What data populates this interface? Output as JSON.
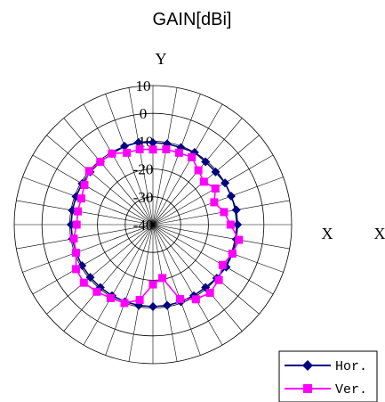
{
  "chart_data": {
    "type": "radar",
    "title": "GAIN[dBi]",
    "axis_labels": {
      "top": "Y",
      "right_1": "X",
      "right_2": "X"
    },
    "radial_ticks": [
      "10",
      "0",
      "-10",
      "-20",
      "-30",
      "-40"
    ],
    "radial_range": [
      -40,
      10
    ],
    "radial_step": 10,
    "spokes": 36,
    "grid": true,
    "legend_position": "bottom-right",
    "series": [
      {
        "name": "Hor.",
        "color": "#000080",
        "marker": "diamond",
        "angles_deg": [
          0,
          10,
          20,
          30,
          40,
          50,
          60,
          70,
          80,
          90,
          100,
          110,
          120,
          130,
          140,
          150,
          160,
          170,
          180,
          190,
          200,
          210,
          220,
          230,
          240,
          250,
          260,
          270,
          280,
          290,
          300,
          310,
          320,
          330,
          340,
          350
        ],
        "values": [
          -10.5,
          -10.5,
          -10.5,
          -10,
          -10.5,
          -10.5,
          -10,
          -10,
          -9.5,
          -9.5,
          -9.5,
          -9.5,
          -9.5,
          -10,
          -10.5,
          -10.5,
          -10.5,
          -10.5,
          -10.5,
          -10.5,
          -10.5,
          -10.5,
          -10.5,
          -10.5,
          -10.5,
          -10.5,
          -10.5,
          -10.5,
          -10.5,
          -10.5,
          -10.5,
          -10.5,
          -10.5,
          -10.5,
          -10,
          -10
        ]
      },
      {
        "name": "Ver.",
        "color": "#ff00ff",
        "marker": "square",
        "angles_deg": [
          0,
          10,
          20,
          30,
          40,
          50,
          60,
          70,
          80,
          90,
          100,
          110,
          120,
          130,
          140,
          150,
          160,
          170,
          180,
          190,
          200,
          210,
          220,
          230,
          240,
          250,
          260,
          270,
          280,
          290,
          300,
          310,
          320,
          330,
          340,
          350
        ],
        "values": [
          -13,
          -12.5,
          -12.5,
          -12,
          -14.5,
          -16,
          -14,
          -16.5,
          -14,
          -12,
          -8.5,
          -9.5,
          -11,
          -9,
          -8,
          -9,
          -11.5,
          -20.5,
          -18.5,
          -12.5,
          -10,
          -9.5,
          -8.5,
          -7.5,
          -8,
          -10.5,
          -11,
          -12.5,
          -12.5,
          -12.5,
          -11.5,
          -10,
          -10.5,
          -10.5,
          -12.5,
          -12.5
        ]
      }
    ]
  }
}
